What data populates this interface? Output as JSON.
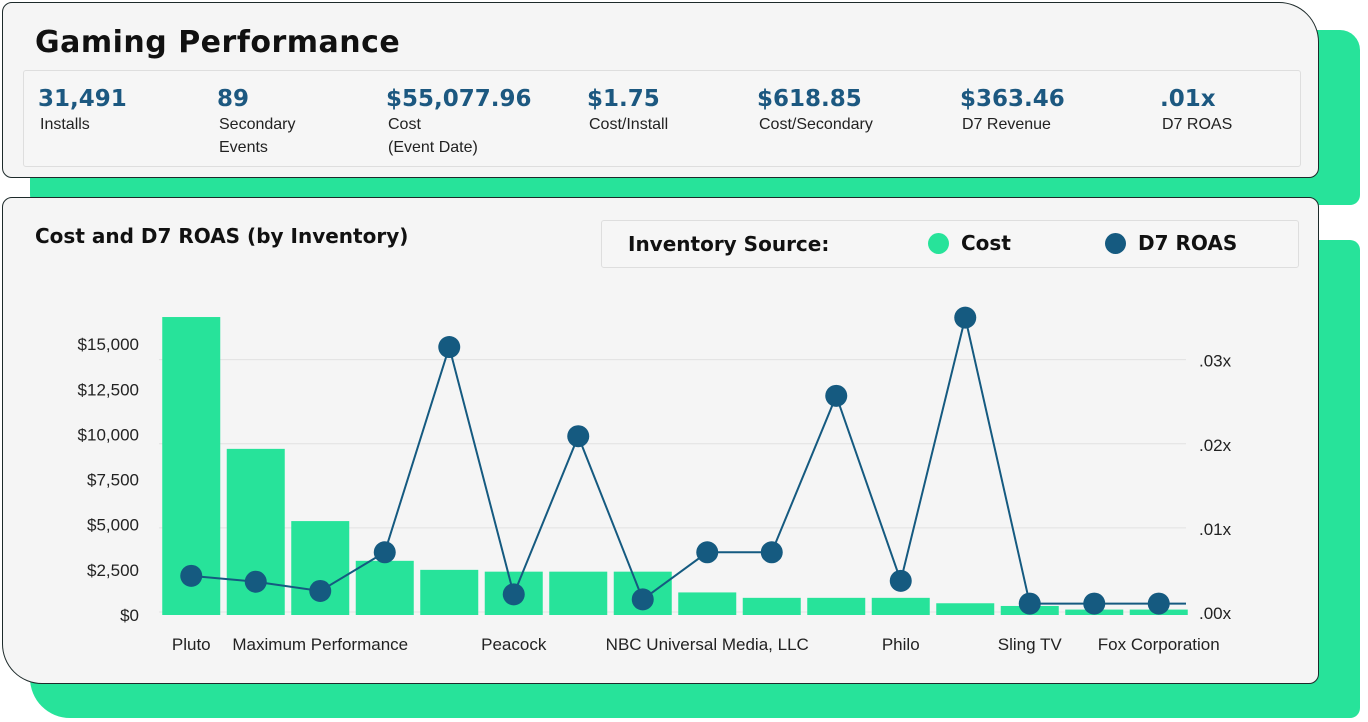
{
  "title": "Gaming Performance",
  "kpis": [
    {
      "value": "31,491",
      "label": "Installs"
    },
    {
      "value": "89",
      "label": "Secondary\nEvents"
    },
    {
      "value": "$55,077.96",
      "label": "Cost\n(Event Date)"
    },
    {
      "value": "$1.75",
      "label": "Cost/Install"
    },
    {
      "value": "$618.85",
      "label": "Cost/Secondary"
    },
    {
      "value": "$363.46",
      "label": "D7 Revenue"
    },
    {
      "value": ".01x",
      "label": "D7 ROAS"
    }
  ],
  "colors": {
    "cost": "#27e39a",
    "roas": "#155a80",
    "value_text": "#1c5880"
  },
  "legend": {
    "title": "Inventory Source:",
    "cost_label": "Cost",
    "roas_label": "D7 ROAS"
  },
  "chart_data": {
    "type": "bar+line",
    "title": "Cost and D7 ROAS (by Inventory)",
    "categories": [
      "Pluto",
      "",
      "Maximum Performance",
      "",
      "",
      "Peacock",
      "",
      "",
      "NBC Universal Media, LLC",
      "",
      "",
      "Philo",
      "",
      "Sling TV",
      "",
      "Fox Corporation"
    ],
    "x_tick_labels": [
      "Pluto",
      "Maximum Performance",
      "Peacock",
      "NBC Universal Media, LLC",
      "Philo",
      "Sling TV",
      "Fox Corporation"
    ],
    "series": [
      {
        "name": "Cost",
        "axis": "left",
        "type": "bar",
        "values": [
          16500,
          9200,
          5200,
          3000,
          2500,
          2400,
          2400,
          2400,
          1250,
          950,
          950,
          950,
          650,
          500,
          300,
          300
        ]
      },
      {
        "name": "D7 ROAS",
        "axis": "right",
        "type": "line",
        "values": [
          0.0043,
          0.0036,
          0.0025,
          0.0071,
          0.0315,
          0.0021,
          0.0209,
          0.0015,
          0.0071,
          0.0071,
          0.0257,
          0.0037,
          0.035,
          0.001,
          0.001,
          0.001
        ]
      }
    ],
    "left_axis": {
      "min": 0,
      "max": 17000,
      "ticks": [
        0,
        2500,
        5000,
        7500,
        10000,
        12500,
        15000
      ],
      "tick_labels": [
        "$0",
        "$2,500",
        "$5,000",
        "$7,500",
        "$10,000",
        "$12,500",
        "$15,000"
      ]
    },
    "right_axis": {
      "min": 0,
      "max": 0.0365,
      "ticks": [
        0,
        0.01,
        0.02,
        0.03
      ],
      "tick_labels": [
        ".00x",
        ".01x",
        ".02x",
        ".03x"
      ]
    },
    "grid": true
  }
}
